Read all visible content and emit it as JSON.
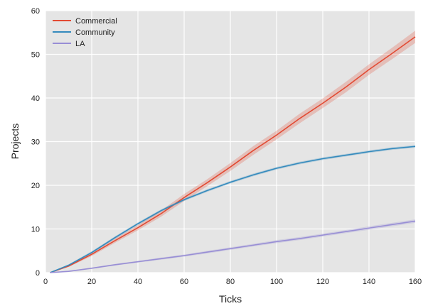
{
  "chart_data": {
    "type": "line",
    "xlabel": "Ticks",
    "ylabel": "Projects",
    "xlim": [
      0,
      160
    ],
    "ylim": [
      0,
      60
    ],
    "x_ticks": [
      0,
      20,
      40,
      60,
      80,
      100,
      120,
      140,
      160
    ],
    "y_ticks": [
      0,
      10,
      20,
      30,
      40,
      50,
      60
    ],
    "grid": true,
    "legend_position": "top-left",
    "x": [
      2,
      10,
      20,
      30,
      40,
      50,
      60,
      70,
      80,
      90,
      100,
      110,
      120,
      130,
      140,
      150,
      160
    ],
    "series": [
      {
        "name": "Commercial",
        "color": "#e24a33",
        "values": [
          0,
          1.5,
          4.2,
          7.3,
          10.3,
          13.5,
          17.2,
          20.6,
          24.2,
          28,
          31.5,
          35.3,
          38.8,
          42.5,
          46.5,
          50.2,
          54
        ],
        "band": [
          0,
          0.2,
          0.4,
          0.5,
          0.6,
          0.7,
          0.8,
          0.8,
          0.9,
          1,
          1,
          1.1,
          1.1,
          1.2,
          1.2,
          1.3,
          1.4
        ]
      },
      {
        "name": "Community",
        "color": "#348abd",
        "values": [
          0,
          1.7,
          4.6,
          8,
          11.2,
          14.2,
          16.7,
          18.8,
          20.7,
          22.4,
          23.9,
          25.1,
          26.1,
          26.9,
          27.7,
          28.4,
          28.9
        ],
        "band": [
          0,
          0.2,
          0.3,
          0.3,
          0.3,
          0.3,
          0.3,
          0.3,
          0.3,
          0.3,
          0.3,
          0.3,
          0.3,
          0.3,
          0.3,
          0.3,
          0.3
        ]
      },
      {
        "name": "LA",
        "color": "#988ed5",
        "values": [
          0,
          0.3,
          1,
          1.8,
          2.5,
          3.2,
          3.9,
          4.7,
          5.5,
          6.3,
          7.1,
          7.8,
          8.6,
          9.4,
          10.2,
          11,
          11.8
        ],
        "band": [
          0,
          0.1,
          0.15,
          0.2,
          0.2,
          0.25,
          0.25,
          0.3,
          0.3,
          0.3,
          0.35,
          0.35,
          0.35,
          0.35,
          0.4,
          0.4,
          0.4
        ]
      }
    ]
  }
}
